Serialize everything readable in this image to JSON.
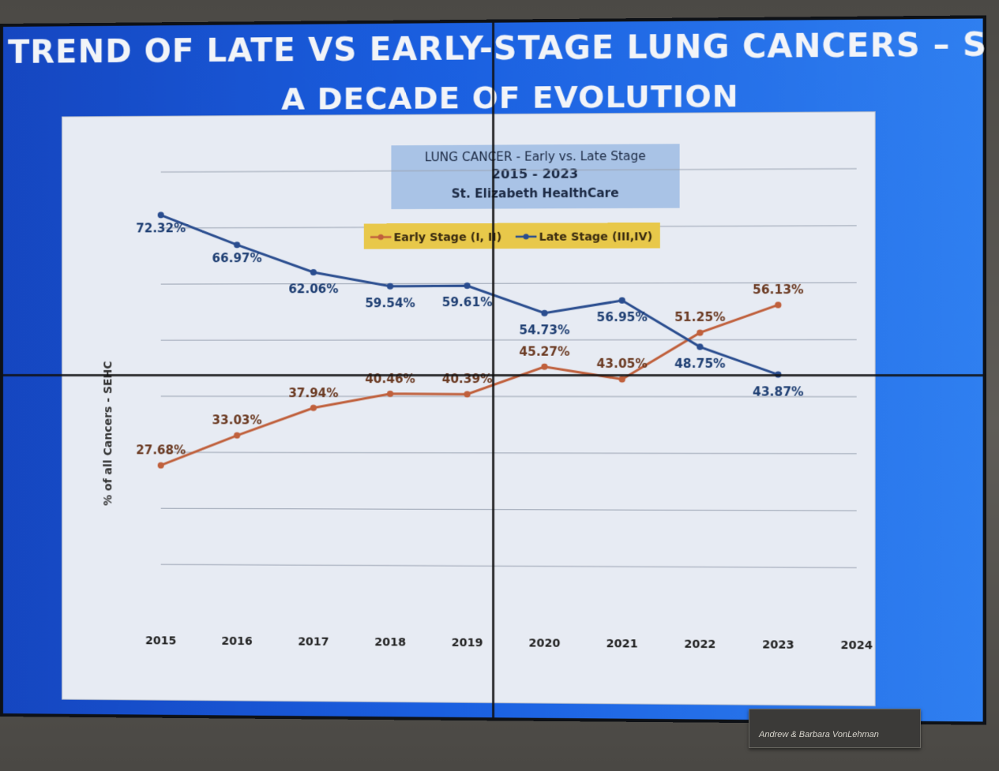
{
  "slide": {
    "title_line1": "TREND OF LATE VS EARLY-STAGE LUNG CANCERS – SEHC",
    "title_line2": "A DECADE OF EVOLUTION"
  },
  "plaque": {
    "small_text": "",
    "name": "Andrew & Barbara VonLehman"
  },
  "colors": {
    "early": "#c0603c",
    "late": "#2a4d8f",
    "legend_bg": "#e8c84a",
    "title_box_bg": "#a9c3e6",
    "slide_blue": "#1a5fe0"
  },
  "chart_data": {
    "type": "line",
    "title": "LUNG CANCER - Early vs. Late Stage",
    "subtitle": "2015 - 2023",
    "subtitle2": "St. Elizabeth HealthCare",
    "ylabel": "% of all Cancers - SEHC",
    "xlabel": "",
    "categories": [
      "2015",
      "2016",
      "2017",
      "2018",
      "2019",
      "2020",
      "2021",
      "2022",
      "2023",
      "2024"
    ],
    "ylim": [
      0,
      80
    ],
    "grid": true,
    "legend_position": "top-center",
    "series": [
      {
        "name": "Early Stage (I, II)",
        "values": [
          27.68,
          33.03,
          37.94,
          40.46,
          40.39,
          45.27,
          43.05,
          51.25,
          56.13,
          null
        ],
        "labels": [
          "27.68%",
          "33.03%",
          "37.94%",
          "40.46%",
          "40.39%",
          "45.27%",
          "43.05%",
          "51.25%",
          "56.13%",
          ""
        ]
      },
      {
        "name": "Late Stage (III,IV)",
        "values": [
          72.32,
          66.97,
          62.06,
          59.54,
          59.61,
          54.73,
          56.95,
          48.75,
          43.87,
          null
        ],
        "labels": [
          "72.32%",
          "66.97%",
          "62.06%",
          "59.54%",
          "59.61%",
          "54.73%",
          "56.95%",
          "48.75%",
          "43.87%",
          ""
        ]
      }
    ]
  }
}
